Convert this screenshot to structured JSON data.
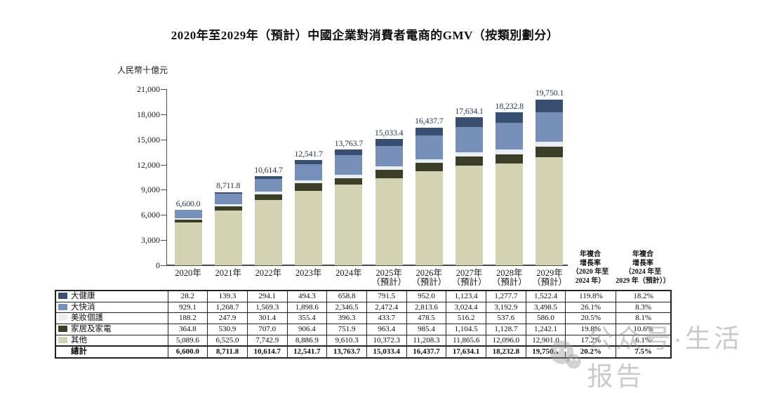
{
  "title": "2020年至2029年（預計）中國企業對消費者電商的GMV（按類別劃分）",
  "unit_label": "人民幣十億元",
  "chart_data": {
    "type": "bar",
    "stacked": true,
    "title": "2020年至2029年（預計）中國企業對消費者電商的GMV（按類別劃分）",
    "ylabel": "人民幣十億元",
    "ylim": [
      0,
      21000
    ],
    "grid": false,
    "yticks": [
      {
        "value": 0,
        "label": "0"
      },
      {
        "value": 3000,
        "label": "3,000"
      },
      {
        "value": 6000,
        "label": "6,000"
      },
      {
        "value": 9000,
        "label": "9,000"
      },
      {
        "value": 12000,
        "label": "12,000"
      },
      {
        "value": 15000,
        "label": "15,000"
      },
      {
        "value": 18000,
        "label": "18,000"
      },
      {
        "value": 21000,
        "label": "21,000"
      }
    ],
    "categories": [
      {
        "year": "2020年",
        "note": ""
      },
      {
        "year": "2021年",
        "note": ""
      },
      {
        "year": "2022年",
        "note": ""
      },
      {
        "year": "2023年",
        "note": ""
      },
      {
        "year": "2024年",
        "note": ""
      },
      {
        "year": "2025年",
        "note": "（預計）"
      },
      {
        "year": "2026年",
        "note": "（預計）"
      },
      {
        "year": "2027年",
        "note": "（預計）"
      },
      {
        "year": "2028年",
        "note": "（預計）"
      },
      {
        "year": "2029年",
        "note": "（預計）"
      }
    ],
    "series": [
      {
        "name": "大健康",
        "color": "#394f70",
        "values": [
          28.2,
          139.3,
          294.1,
          494.3,
          658.8,
          791.5,
          952.0,
          1123.4,
          1277.7,
          1522.4
        ],
        "cagr": [
          "119.8%",
          "18.2%"
        ]
      },
      {
        "name": "大快消",
        "color": "#7690b9",
        "values": [
          929.1,
          1268.7,
          1569.3,
          1898.6,
          2346.5,
          2472.4,
          2813.6,
          3024.4,
          3192.9,
          3498.5
        ],
        "cagr": [
          "26.1%",
          "8.3%"
        ]
      },
      {
        "name": "美妝個護",
        "color": "#e9eef3",
        "values": [
          188.2,
          247.9,
          301.4,
          355.4,
          396.3,
          433.7,
          478.5,
          516.2,
          537.6,
          586.0
        ],
        "cagr": [
          "20.5%",
          "8.1%"
        ]
      },
      {
        "name": "家居及家電",
        "color": "#3c3f27",
        "values": [
          364.8,
          530.9,
          707.0,
          906.4,
          751.9,
          963.4,
          985.4,
          1104.5,
          1128.7,
          1242.1
        ],
        "cagr": [
          "19.8%",
          "10.6%"
        ]
      },
      {
        "name": "其他",
        "color": "#d3d3b1",
        "values": [
          5089.6,
          6525.0,
          7742.9,
          8886.9,
          9610.3,
          10372.3,
          11208.3,
          11865.6,
          12096.0,
          12901.0
        ],
        "cagr": [
          "17.2%",
          "6.1%"
        ]
      }
    ],
    "totals": [
      "6,600.0",
      "8,711.8",
      "10,614.7",
      "12,541.7",
      "13,763.7",
      "15,033.4",
      "16,437.7",
      "17,634.1",
      "18,232.8",
      "19,750.1"
    ],
    "legend_position": "table-left-column"
  },
  "table": {
    "total_label": "總計",
    "total_cagr": [
      "20.2%",
      "7.5%"
    ],
    "cagr_headers": [
      {
        "lines": [
          "年複合",
          "增長率",
          "（2020 年至",
          "2024 年）"
        ]
      },
      {
        "lines": [
          "年複合",
          "增長率",
          "（2024 年至",
          "2029 年（預計））"
        ]
      }
    ]
  },
  "watermark": {
    "logo": "wechat-icon",
    "text": "公众号·生活报告"
  }
}
